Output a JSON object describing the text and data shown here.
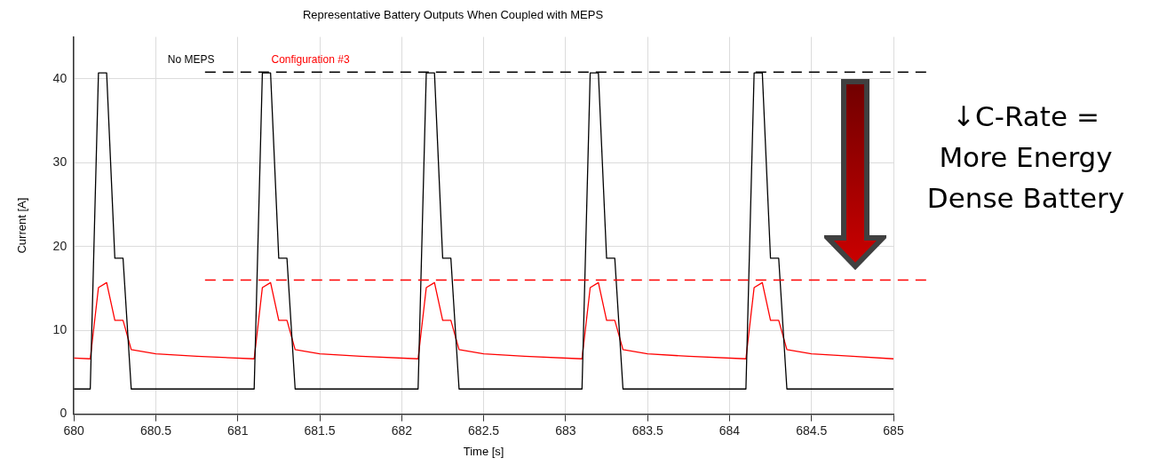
{
  "chart_data": {
    "type": "line",
    "title": "Representative Battery Outputs When Coupled with MEPS",
    "xlabel": "Time [s]",
    "ylabel": "Current [A]",
    "xlim": [
      680,
      685
    ],
    "xticks": [
      680,
      680.5,
      681,
      681.5,
      682,
      682.5,
      683,
      683.5,
      684,
      684.5,
      685
    ],
    "ylim": [
      0,
      45
    ],
    "yticks": [
      0,
      10,
      20,
      30,
      40
    ],
    "grid": true,
    "legend": false,
    "marker": "none",
    "line_style": "solid",
    "series": [
      {
        "color": "#000000",
        "x": [
          680,
          680.1,
          680.15,
          680.2,
          680.25,
          680.3,
          680.35,
          681.1,
          681.15,
          681.2,
          681.25,
          681.3,
          681.35,
          682.1,
          682.15,
          682.2,
          682.25,
          682.3,
          682.35,
          683.1,
          683.15,
          683.2,
          683.25,
          683.3,
          683.35,
          684.1,
          684.15,
          684.2,
          684.25,
          684.3,
          684.35,
          685
        ],
        "values": [
          3,
          3,
          40.7,
          40.7,
          18.6,
          18.6,
          3,
          3,
          40.7,
          40.7,
          18.6,
          18.6,
          3,
          3,
          40.7,
          40.7,
          18.6,
          18.6,
          3,
          3,
          40.7,
          40.7,
          18.6,
          18.6,
          3,
          3,
          40.7,
          40.7,
          18.6,
          18.6,
          3,
          3
        ]
      },
      {
        "color": "#ff0000",
        "x": [
          680,
          680.1,
          680.15,
          680.2,
          680.25,
          680.3,
          680.35,
          680.5,
          680.75,
          681.1,
          681.15,
          681.2,
          681.25,
          681.3,
          681.35,
          681.5,
          681.75,
          682.1,
          682.15,
          682.2,
          682.25,
          682.3,
          682.35,
          682.5,
          682.75,
          683.1,
          683.15,
          683.2,
          683.25,
          683.3,
          683.35,
          683.5,
          683.75,
          684.1,
          684.15,
          684.2,
          684.25,
          684.3,
          684.35,
          684.5,
          684.75,
          685
        ],
        "values": [
          6.7,
          6.6,
          15.1,
          15.7,
          11.2,
          11.2,
          7.7,
          7.2,
          6.9,
          6.6,
          15.1,
          15.7,
          11.2,
          11.2,
          7.7,
          7.2,
          6.9,
          6.6,
          15.1,
          15.7,
          11.2,
          11.2,
          7.7,
          7.2,
          6.9,
          6.6,
          15.1,
          15.7,
          11.2,
          11.2,
          7.7,
          7.2,
          6.9,
          6.6,
          15.1,
          15.7,
          11.2,
          11.2,
          7.7,
          7.2,
          6.9,
          6.6
        ]
      }
    ],
    "ref_lines": [
      {
        "axis": "y",
        "value": 40.8,
        "label": "No MEPS",
        "color": "#000000",
        "line_style": "dashed"
      },
      {
        "axis": "y",
        "value": 16,
        "label": "Configuration #3",
        "color": "#ff0000",
        "line_style": "dashed"
      }
    ],
    "annotations": [
      "↓C-Rate = More Energy Dense Battery"
    ]
  }
}
